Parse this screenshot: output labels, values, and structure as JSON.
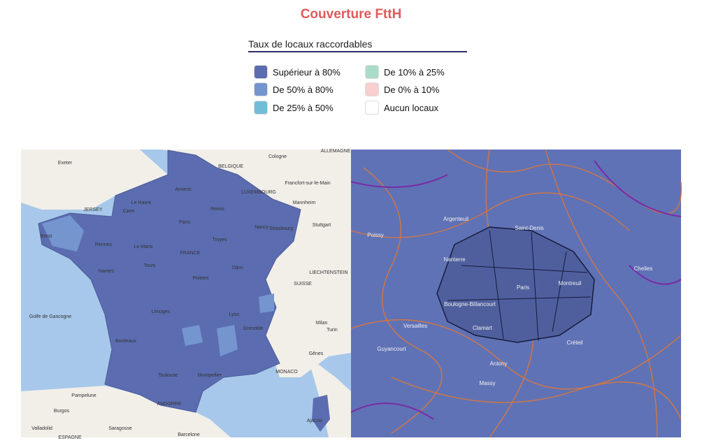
{
  "title": "Couverture FttH",
  "legend": {
    "title": "Taux de locaux raccordables",
    "items": [
      {
        "label": "Supérieur à 80%",
        "color": "#5b6db0"
      },
      {
        "label": "De 50% à 80%",
        "color": "#7595cf"
      },
      {
        "label": "De 25% à 50%",
        "color": "#73bcd8"
      },
      {
        "label": "De 10% à 25%",
        "color": "#a9dcc6"
      },
      {
        "label": "De 0% à 10%",
        "color": "#f9cfcf"
      },
      {
        "label": "Aucun locaux",
        "color": "#ffffff"
      }
    ]
  },
  "map_left": {
    "labels": [
      "Exeter",
      "BELGIQUE",
      "Cologne",
      "ALLEMAGNE",
      "JERSEY",
      "Amiens",
      "Le Havre",
      "LUXEMBOURG",
      "Francfort-sur-le-Main",
      "Caen",
      "Reims",
      "Mannheim",
      "Paris",
      "Nancy",
      "Strasbourg",
      "Stuttgart",
      "Brest",
      "Rennes",
      "Le Mans",
      "Troyes",
      "FRANCE",
      "Nantes",
      "Tours",
      "Dijon",
      "LIECHTENSTEIN",
      "SUISSE",
      "Poitiers",
      "Limoges",
      "Lyon",
      "Milan",
      "Bordeaux",
      "Grenoble",
      "Turin",
      "Golfe de Gascogne",
      "Toulouse",
      "Montpellier",
      "MONACO",
      "Gênes",
      "Pampelune",
      "ANDORRE",
      "Burgos",
      "Saragosse",
      "Barcelone",
      "Valladolid",
      "ESPAGNE",
      "Ajaccio"
    ]
  },
  "map_right": {
    "labels": [
      "Argenteuil",
      "Saint-Denis",
      "Paris",
      "Montreuil",
      "Boulogne-Billancourt",
      "Versailles",
      "Nanterre",
      "Poissy",
      "Créteil",
      "Massy",
      "Antony",
      "Clamart",
      "Chelles",
      "Guyancourt"
    ]
  }
}
